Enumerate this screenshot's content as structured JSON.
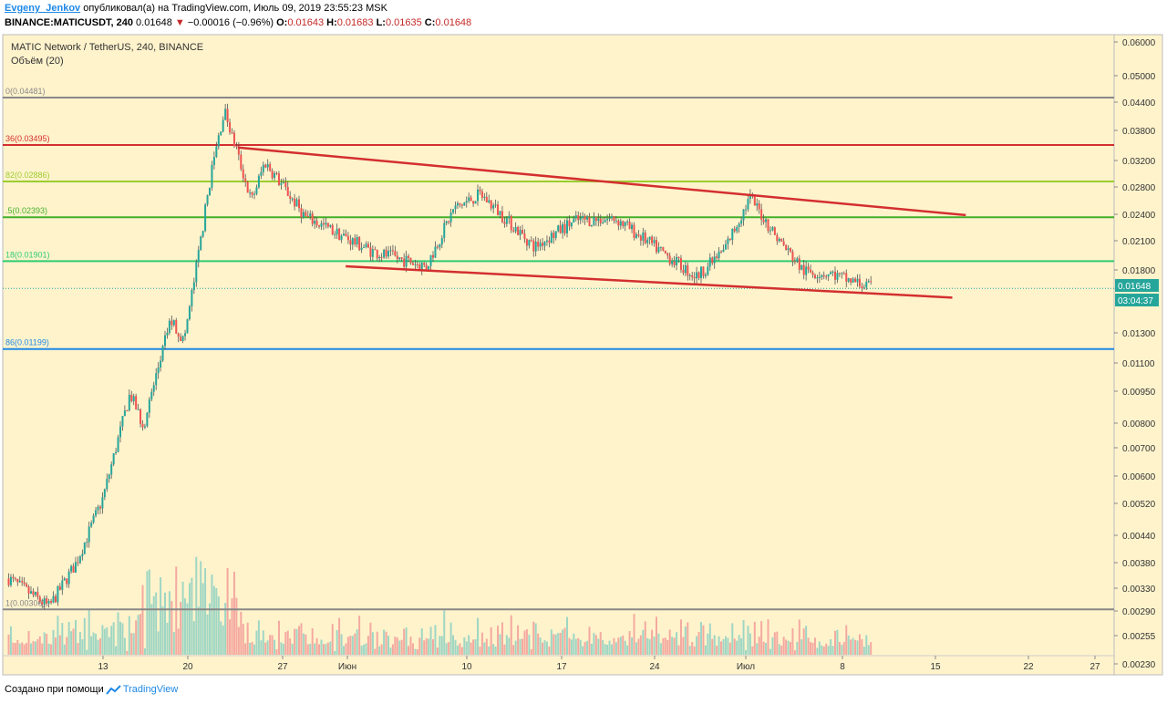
{
  "header": {
    "author": "Evgeny_Jenkov",
    "published_text": "опубликовал(а) на TradingView.com, Июль 09, 2019 23:55:23 MSK",
    "symbol": "BINANCE:MATICUSDT, 240",
    "price": "0.01648",
    "change_arrow": "▼",
    "change": "−0.00016 (−0.96%)",
    "o_label": "O:",
    "o_value": "0.01643",
    "h_label": "H:",
    "h_value": "0.01683",
    "l_label": "L:",
    "l_value": "0.01635",
    "c_label": "C:",
    "c_value": "0.01648"
  },
  "footer": {
    "text": "Создано при помощи",
    "brand": "TradingView"
  },
  "chart_data": {
    "type": "candlestick",
    "title": "MATIC Network / TetherUS, 240, BINANCE",
    "subtitle": "Объём (20)",
    "price_axis": {
      "ticks": [
        "0.06000",
        "0.05000",
        "0.04400",
        "0.03800",
        "0.03200",
        "0.02800",
        "0.02400",
        "0.02100",
        "0.01800",
        "0.01300",
        "0.01100",
        "0.00950",
        "0.00800",
        "0.00700",
        "0.00600",
        "0.00520",
        "0.00440",
        "0.00380",
        "0.00330",
        "0.00290",
        "0.00255",
        "0.00230"
      ],
      "scale": "log",
      "range": [
        0.0023,
        0.06
      ]
    },
    "time_axis": {
      "ticks": [
        "13",
        "20",
        "27",
        "Июн",
        "10",
        "17",
        "24",
        "Июл",
        "8",
        "15",
        "22",
        "27"
      ]
    },
    "fib_levels": [
      {
        "label": "0(0.04481)",
        "value": 0.04481,
        "color": "#888888"
      },
      {
        "label": "36(0.03495)",
        "value": 0.03495,
        "color": "#d32f2f"
      },
      {
        "label": "82(0.02886)",
        "value": 0.02886,
        "color": "#9ccc30"
      },
      {
        "label": ".5(0.02393)",
        "value": 0.02393,
        "color": "#43b02a"
      },
      {
        "label": "18(0.01901)",
        "value": 0.01901,
        "color": "#2ecc71"
      },
      {
        "label": "86(0.01199)",
        "value": 0.01199,
        "color": "#1e88e5"
      },
      {
        "label": "1(0.00306)",
        "value": 0.00306,
        "color": "#888888"
      }
    ],
    "price_anchors": [
      {
        "date": "2019-05-06",
        "price": 0.0036
      },
      {
        "date": "2019-05-09",
        "price": 0.0031
      },
      {
        "date": "2019-05-11",
        "price": 0.0039
      },
      {
        "date": "2019-05-13",
        "price": 0.0055
      },
      {
        "date": "2019-05-15",
        "price": 0.0095
      },
      {
        "date": "2019-05-16",
        "price": 0.008
      },
      {
        "date": "2019-05-18",
        "price": 0.014
      },
      {
        "date": "2019-05-19",
        "price": 0.0125
      },
      {
        "date": "2019-05-20",
        "price": 0.019
      },
      {
        "date": "2019-05-21",
        "price": 0.03
      },
      {
        "date": "2019-05-22",
        "price": 0.042
      },
      {
        "date": "2019-05-24",
        "price": 0.026
      },
      {
        "date": "2019-05-25",
        "price": 0.032
      },
      {
        "date": "2019-05-28",
        "price": 0.024
      },
      {
        "date": "2019-06-02",
        "price": 0.02
      },
      {
        "date": "2019-06-06",
        "price": 0.0185
      },
      {
        "date": "2019-06-08",
        "price": 0.025
      },
      {
        "date": "2019-06-10",
        "price": 0.027
      },
      {
        "date": "2019-06-14",
        "price": 0.0205
      },
      {
        "date": "2019-06-17",
        "price": 0.0235
      },
      {
        "date": "2019-06-20",
        "price": 0.0238
      },
      {
        "date": "2019-06-22",
        "price": 0.0215
      },
      {
        "date": "2019-06-26",
        "price": 0.0175
      },
      {
        "date": "2019-06-28",
        "price": 0.02
      },
      {
        "date": "2019-06-30",
        "price": 0.0265
      },
      {
        "date": "2019-07-02",
        "price": 0.0215
      },
      {
        "date": "2019-07-04",
        "price": 0.018
      },
      {
        "date": "2019-07-06",
        "price": 0.0178
      },
      {
        "date": "2019-07-09",
        "price": 0.0165
      }
    ],
    "trendlines": [
      {
        "from": {
          "date": "2019-05-23",
          "price": 0.0345
        },
        "to": {
          "date": "2019-07-16",
          "price": 0.0242
        },
        "color": "#d32f2f"
      },
      {
        "from": {
          "date": "2019-05-31",
          "price": 0.0185
        },
        "to": {
          "date": "2019-07-15",
          "price": 0.0157
        },
        "color": "#d32f2f"
      }
    ],
    "last_price": "0.01648",
    "countdown": "03:04:37",
    "colors": {
      "up": "#26a69a",
      "down": "#ef5350",
      "background": "#fff3cc"
    }
  }
}
